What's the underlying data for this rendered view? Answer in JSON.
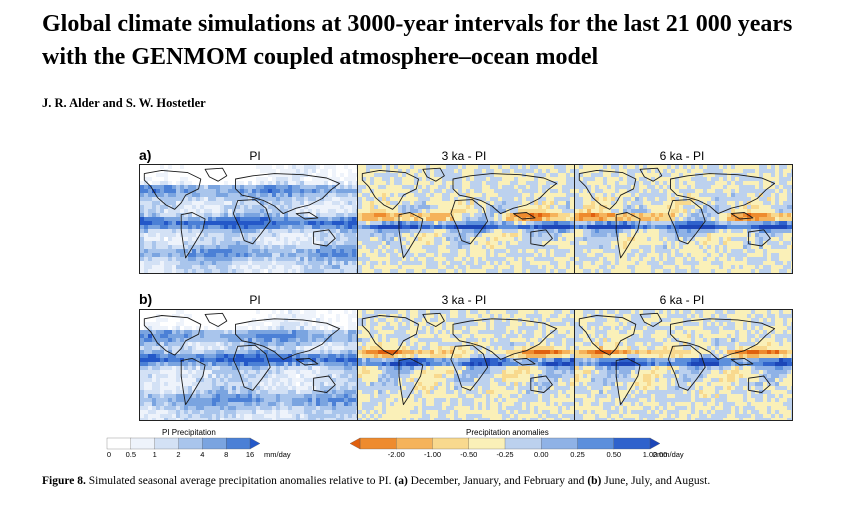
{
  "paper": {
    "title": "Global climate simulations at 3000-year intervals for the last 21 000 years with the GENMOM coupled atmosphere–ocean model",
    "authors": "J. R. Alder and S. W. Hostetler"
  },
  "figure": {
    "rows": [
      {
        "label": "a)",
        "panels": [
          {
            "title": "PI",
            "kind": "pi"
          },
          {
            "title": "3 ka - PI",
            "kind": "anom"
          },
          {
            "title": "6 ka - PI",
            "kind": "anom"
          }
        ]
      },
      {
        "label": "b)",
        "panels": [
          {
            "title": "PI",
            "kind": "pi"
          },
          {
            "title": "3 ka - PI",
            "kind": "anom"
          },
          {
            "title": "6 ka - PI",
            "kind": "anom"
          }
        ]
      }
    ],
    "colorbar_pi": {
      "title": "PI Precipitation",
      "ticks": [
        "0",
        "0.5",
        "1",
        "2",
        "4",
        "8",
        "16"
      ],
      "unit": "mm/day",
      "colors": [
        "#ffffff",
        "#eef3fb",
        "#d3e1f5",
        "#a9c5ec",
        "#7aa4e0",
        "#4b80d6",
        "#2458c8"
      ]
    },
    "colorbar_anom": {
      "title": "Precipitation anomalies",
      "ticks": [
        "-2.00",
        "-1.00",
        "-0.50",
        "-0.25",
        "0.00",
        "0.25",
        "0.50",
        "1.00",
        "2.00"
      ],
      "unit": "mm/day",
      "colors": [
        "#e0600f",
        "#ee8b2e",
        "#f5b35b",
        "#f8d98e",
        "#faf0b8",
        "#bcd1ee",
        "#8fb2e6",
        "#5c8fdc",
        "#2f62cc",
        "#1c46b8"
      ]
    }
  },
  "caption": {
    "label": "Figure 8.",
    "text_1": " Simulated seasonal average precipitation anomalies relative to PI. ",
    "a": "(a)",
    "text_2": " December, January, and February and ",
    "b": "(b)",
    "text_3": " June, July, and August."
  }
}
